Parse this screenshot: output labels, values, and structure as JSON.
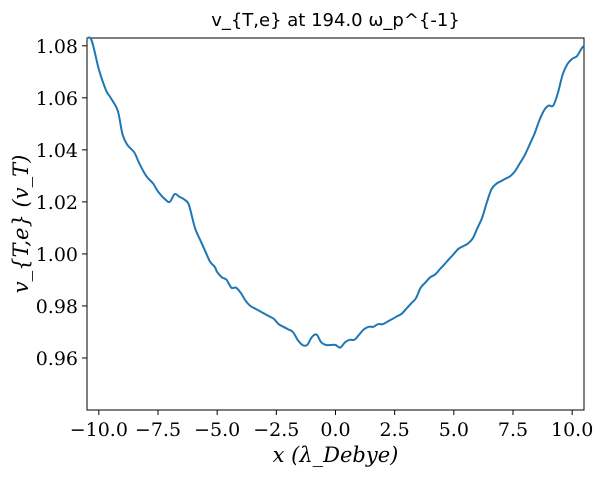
{
  "chart_data": {
    "type": "line",
    "title": "v_{T,e} at 194.0 ω_p^{-1}",
    "xlabel": "x (λ_Debye)",
    "ylabel": "v_{T,e} (v_T)",
    "xlim": [
      -10.5,
      10.5
    ],
    "ylim": [
      0.94,
      1.083
    ],
    "xticks": [
      -10.0,
      -7.5,
      -5.0,
      -2.5,
      0.0,
      2.5,
      5.0,
      7.5,
      10.0
    ],
    "xtick_labels": [
      "−10.0",
      "−7.5",
      "−5.0",
      "−2.5",
      "0.0",
      "2.5",
      "5.0",
      "7.5",
      "10.0"
    ],
    "yticks": [
      0.96,
      0.98,
      1.0,
      1.02,
      1.04,
      1.06,
      1.08
    ],
    "ytick_labels": [
      "0.96",
      "0.98",
      "1.00",
      "1.02",
      "1.04",
      "1.06",
      "1.08"
    ],
    "grid": false,
    "line_color": "#1f77b4",
    "series": [
      {
        "x": [
          -10.5,
          -10.3,
          -10.0,
          -9.7,
          -9.5,
          -9.2,
          -9.0,
          -8.8,
          -8.5,
          -8.3,
          -8.0,
          -7.7,
          -7.5,
          -7.2,
          -7.0,
          -6.8,
          -6.6,
          -6.4,
          -6.2,
          -6.0,
          -5.9,
          -5.7,
          -5.5,
          -5.3,
          -5.1,
          -5.0,
          -4.8,
          -4.6,
          -4.4,
          -4.2,
          -4.0,
          -3.8,
          -3.6,
          -3.4,
          -3.2,
          -3.0,
          -2.8,
          -2.6,
          -2.4,
          -2.2,
          -2.0,
          -1.8,
          -1.6,
          -1.4,
          -1.2,
          -1.0,
          -0.8,
          -0.6,
          -0.4,
          -0.2,
          0.0,
          0.2,
          0.4,
          0.6,
          0.8,
          1.0,
          1.2,
          1.4,
          1.6,
          1.8,
          2.0,
          2.2,
          2.4,
          2.6,
          2.8,
          3.0,
          3.2,
          3.4,
          3.6,
          3.8,
          4.0,
          4.2,
          4.4,
          4.6,
          4.8,
          5.0,
          5.2,
          5.4,
          5.6,
          5.8,
          6.0,
          6.2,
          6.4,
          6.6,
          6.8,
          7.0,
          7.2,
          7.4,
          7.6,
          7.8,
          8.0,
          8.2,
          8.4,
          8.6,
          8.8,
          9.0,
          9.2,
          9.4,
          9.6,
          9.8,
          10.0,
          10.2,
          10.4,
          10.5
        ],
        "y": [
          1.083,
          1.082,
          1.071,
          1.063,
          1.06,
          1.055,
          1.046,
          1.042,
          1.039,
          1.035,
          1.03,
          1.027,
          1.024,
          1.021,
          1.02,
          1.023,
          1.022,
          1.021,
          1.019,
          1.012,
          1.009,
          1.005,
          1.001,
          0.997,
          0.995,
          0.993,
          0.991,
          0.99,
          0.987,
          0.987,
          0.985,
          0.982,
          0.98,
          0.979,
          0.978,
          0.977,
          0.976,
          0.975,
          0.973,
          0.972,
          0.971,
          0.97,
          0.967,
          0.965,
          0.965,
          0.968,
          0.969,
          0.966,
          0.965,
          0.965,
          0.965,
          0.964,
          0.966,
          0.967,
          0.967,
          0.969,
          0.971,
          0.972,
          0.972,
          0.973,
          0.973,
          0.974,
          0.975,
          0.976,
          0.977,
          0.979,
          0.981,
          0.983,
          0.987,
          0.989,
          0.991,
          0.992,
          0.994,
          0.996,
          0.998,
          1.0,
          1.002,
          1.003,
          1.004,
          1.006,
          1.01,
          1.014,
          1.02,
          1.025,
          1.027,
          1.028,
          1.029,
          1.03,
          1.032,
          1.035,
          1.038,
          1.042,
          1.046,
          1.051,
          1.055,
          1.057,
          1.057,
          1.062,
          1.069,
          1.073,
          1.075,
          1.076,
          1.079,
          1.08
        ]
      }
    ]
  }
}
